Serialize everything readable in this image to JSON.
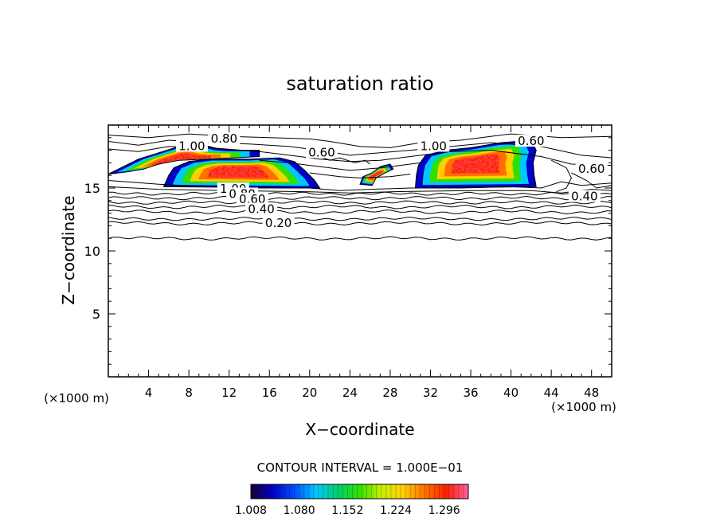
{
  "chart_data": {
    "type": "contour",
    "title": "saturation ratio",
    "xlabel": "X−coordinate",
    "ylabel": "Z−coordinate",
    "x_unit_left": "(×1000 m)",
    "x_unit_right": "(×1000 m)",
    "xlim": [
      0,
      50
    ],
    "ylim": [
      0,
      20
    ],
    "x_ticks": [
      "4",
      "8",
      "12",
      "16",
      "20",
      "24",
      "28",
      "32",
      "36",
      "40",
      "44",
      "48"
    ],
    "y_ticks": [
      "5",
      "10",
      "15"
    ],
    "contour_interval_text": "CONTOUR INTERVAL = 1.000E−01",
    "colorbar_labels": [
      "1.008",
      "1.080",
      "1.152",
      "1.224",
      "1.296"
    ],
    "colorbar_range": [
      1.008,
      1.332
    ],
    "colorbar_colors": [
      "#1a0033",
      "#0000c8",
      "#0050ff",
      "#00c8ff",
      "#00d070",
      "#30e000",
      "#c8f000",
      "#ffd000",
      "#ff7000",
      "#ff2000",
      "#ff60a0"
    ],
    "contour_labels": [
      {
        "text": "0.80",
        "x": 11.5,
        "z": 18.8
      },
      {
        "text": "1.00",
        "x": 8.3,
        "z": 18.2
      },
      {
        "text": "0.60",
        "x": 21.2,
        "z": 17.7
      },
      {
        "text": "1.00",
        "x": 32.3,
        "z": 18.2
      },
      {
        "text": "0.60",
        "x": 42.0,
        "z": 18.6
      },
      {
        "text": "0.60",
        "x": 48.0,
        "z": 16.4
      },
      {
        "text": "0.40",
        "x": 47.3,
        "z": 14.2
      },
      {
        "text": "1.00",
        "x": 12.4,
        "z": 14.8
      },
      {
        "text": "0.80",
        "x": 13.3,
        "z": 14.4
      },
      {
        "text": "0.60",
        "x": 14.3,
        "z": 14.0
      },
      {
        "text": "0.40",
        "x": 15.2,
        "z": 13.2
      },
      {
        "text": "0.20",
        "x": 16.9,
        "z": 12.1
      }
    ],
    "supersaturated_regions": [
      {
        "name": "upper-left",
        "x": [
          0,
          15
        ],
        "z": [
          16,
          18.5
        ]
      },
      {
        "name": "lower-left",
        "x": [
          5.5,
          21
        ],
        "z": [
          15,
          17.5
        ]
      },
      {
        "name": "small-center",
        "x": [
          25,
          28.5
        ],
        "z": [
          15.2,
          17
        ]
      },
      {
        "name": "right",
        "x": [
          30.5,
          42.5
        ],
        "z": [
          15,
          18.8
        ]
      }
    ]
  }
}
